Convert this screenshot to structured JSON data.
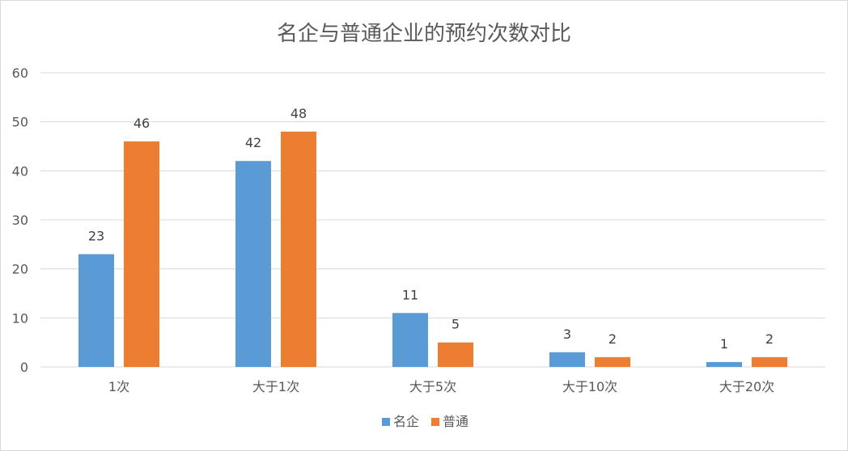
{
  "chart_data": {
    "type": "bar",
    "title": "名企与普通企业的预约次数对比",
    "categories": [
      "1次",
      "大于1次",
      "大于5次",
      "大于10次",
      "大于20次"
    ],
    "series": [
      {
        "name": "名企",
        "values": [
          23,
          42,
          11,
          3,
          1
        ],
        "color": "#5b9bd5"
      },
      {
        "name": "普通",
        "values": [
          46,
          48,
          5,
          2,
          2
        ],
        "color": "#ed7d31"
      }
    ],
    "ylim": [
      0,
      60
    ],
    "yticks": [
      0,
      10,
      20,
      30,
      40,
      50,
      60
    ],
    "grid": true,
    "legend_position": "bottom",
    "data_labels": true
  }
}
